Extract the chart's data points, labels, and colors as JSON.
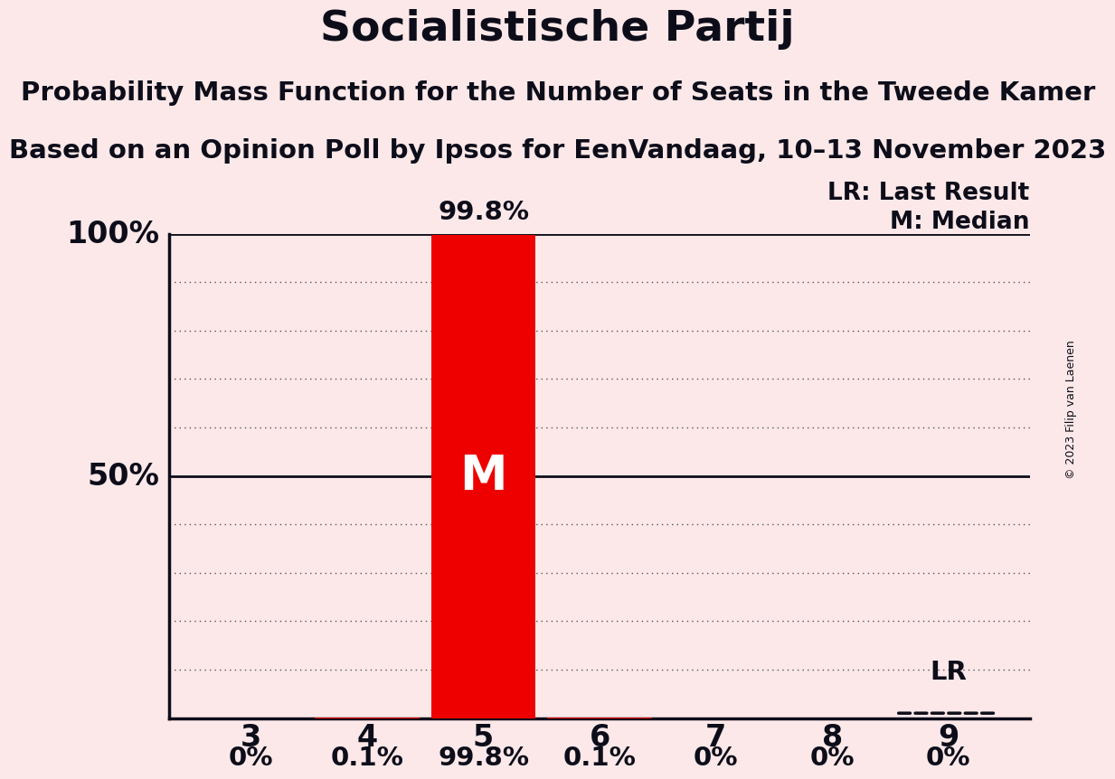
{
  "title": "Socialistische Partij",
  "subtitle1": "Probability Mass Function for the Number of Seats in the Tweede Kamer",
  "subtitle2": "Based on an Opinion Poll by Ipsos for EenVandaag, 10–13 November 2023",
  "copyright": "© 2023 Filip van Laenen",
  "seats": [
    3,
    4,
    5,
    6,
    7,
    8,
    9
  ],
  "probabilities": [
    0.0,
    0.001,
    0.998,
    0.001,
    0.0,
    0.0,
    0.0
  ],
  "bar_labels": [
    "0%",
    "0.1%",
    "99.8%",
    "0.1%",
    "0%",
    "0%",
    "0%"
  ],
  "bar_color": "#EE0000",
  "median_seat": 5,
  "lr_seat": 9,
  "lr_value": 0.0,
  "background_color": "#fce8e8",
  "dark_color": "#0d0d1a",
  "white_color": "#ffffff",
  "legend_lr": "LR: Last Result",
  "legend_m": "M: Median",
  "median_label": "M",
  "title_fontsize": 34,
  "subtitle_fontsize": 21,
  "tick_fontsize": 24,
  "bar_label_fontsize": 21,
  "legend_fontsize": 19,
  "median_label_fontsize": 38,
  "copyright_fontsize": 9,
  "bar_width": 0.9,
  "grid_color": "#555555",
  "lr_line_color": "#0d0d1a",
  "lr_line_lw": 2.5
}
